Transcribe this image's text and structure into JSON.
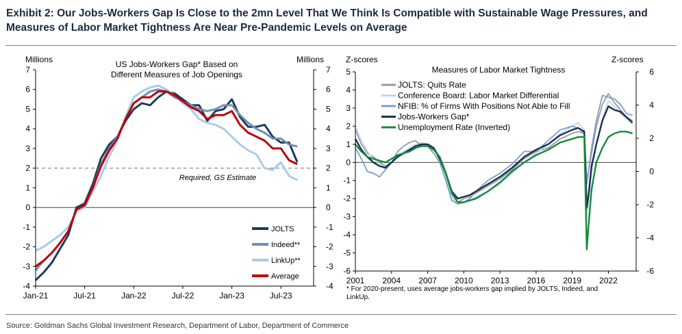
{
  "exhibit_title": "Exhibit 2: Our Jobs-Workers Gap Is Close to the 2mn Level That We Think Is Compatible with Sustainable Wage Pressures, and Measures of Labor Market Tightness Are Near Pre-Pandemic Levels on Average",
  "source": "Source: Goldman Sachs Global Investment Research, Department of Labor, Department of Commerce",
  "chart_data": [
    {
      "type": "line",
      "title": "US Jobs-Workers Gap* Based on Different Measures of Job Openings",
      "y_left_label": "Millions",
      "y_right_label": "Millions",
      "ylim": [
        -4,
        7
      ],
      "yticks": [
        "7",
        "6",
        "5",
        "4",
        "3",
        "2",
        "1",
        "0",
        "-1",
        "-2",
        "-3",
        "-4"
      ],
      "x_ticks": [
        {
          "label": "Jan-21",
          "m": 0
        },
        {
          "label": "Jul-21",
          "m": 6
        },
        {
          "label": "Jan-22",
          "m": 12
        },
        {
          "label": "Jul-22",
          "m": 18
        },
        {
          "label": "Jan-23",
          "m": 24
        },
        {
          "label": "Jul-23",
          "m": 30
        }
      ],
      "xlim_months": [
        0,
        34
      ],
      "reference_line": {
        "y": 2,
        "label": "Required, GS Estimate"
      },
      "series": [
        {
          "name": "JOLTS",
          "color": "#1b3a5c",
          "x": [
            0,
            1,
            2,
            3,
            4,
            5,
            6,
            7,
            8,
            9,
            10,
            11,
            12,
            13,
            14,
            15,
            16,
            17,
            18,
            19,
            20,
            21,
            22,
            23,
            24,
            25,
            26,
            27,
            28,
            29,
            30,
            31,
            32
          ],
          "values": [
            -3.7,
            -3.3,
            -2.8,
            -2.1,
            -1.4,
            0.0,
            0.2,
            1.2,
            2.5,
            3.2,
            3.6,
            4.4,
            5.0,
            5.3,
            5.2,
            5.6,
            5.9,
            5.8,
            5.5,
            5.2,
            5.2,
            4.4,
            4.9,
            5.0,
            5.5,
            4.6,
            4.1,
            4.1,
            4.2,
            3.6,
            3.3,
            3.3,
            2.3
          ]
        },
        {
          "name": "Indeed**",
          "color": "#6f8fb4",
          "x": [
            0,
            1,
            2,
            3,
            4,
            5,
            6,
            7,
            8,
            9,
            10,
            11,
            12,
            13,
            14,
            15,
            16,
            17,
            18,
            19,
            20,
            21,
            22,
            23,
            24,
            25,
            26,
            27,
            28,
            29,
            30,
            31,
            32
          ],
          "values": [
            -3.2,
            -2.7,
            -2.3,
            -1.8,
            -1.2,
            -0.1,
            0.1,
            1.0,
            2.2,
            3.0,
            3.6,
            4.5,
            5.3,
            5.6,
            5.9,
            6.0,
            5.9,
            5.6,
            5.4,
            5.2,
            5.0,
            4.9,
            5.0,
            5.2,
            5.2,
            4.7,
            4.3,
            4.0,
            3.8,
            3.5,
            3.5,
            3.2,
            3.1
          ]
        },
        {
          "name": "LinkUp**",
          "color": "#a9cbe8",
          "x": [
            0,
            1,
            2,
            3,
            4,
            5,
            6,
            7,
            8,
            9,
            10,
            11,
            12,
            13,
            14,
            15,
            16,
            17,
            18,
            19,
            20,
            21,
            22,
            23,
            24,
            25,
            26,
            27,
            28,
            29,
            30,
            31,
            32
          ],
          "values": [
            -2.2,
            -2.0,
            -1.7,
            -1.4,
            -1.0,
            -0.2,
            0.0,
            0.8,
            1.6,
            2.6,
            3.4,
            4.6,
            5.6,
            5.9,
            6.1,
            6.2,
            6.0,
            5.7,
            5.3,
            5.0,
            4.5,
            4.3,
            4.2,
            4.0,
            3.6,
            3.2,
            2.9,
            2.7,
            2.0,
            1.9,
            2.3,
            1.6,
            1.4
          ]
        },
        {
          "name": "Average",
          "color": "#c00000",
          "x": [
            0,
            1,
            2,
            3,
            4,
            5,
            6,
            7,
            8,
            9,
            10,
            11,
            12,
            13,
            14,
            15,
            16,
            17,
            18,
            19,
            20,
            21,
            22,
            23,
            24,
            25,
            26,
            27,
            28,
            29,
            30,
            31,
            32
          ],
          "values": [
            -3.0,
            -2.7,
            -2.3,
            -1.8,
            -1.2,
            -0.1,
            0.1,
            1.0,
            2.1,
            2.9,
            3.5,
            4.5,
            5.3,
            5.6,
            5.6,
            5.9,
            5.9,
            5.7,
            5.4,
            5.1,
            4.9,
            4.5,
            4.7,
            4.7,
            4.9,
            4.2,
            3.8,
            3.6,
            3.4,
            3.0,
            3.0,
            2.4,
            2.2
          ]
        }
      ]
    },
    {
      "type": "line",
      "title": "Measures of Labor Market Tightness",
      "y_left_label": "Z-scores",
      "y_right_label": "Z-scores",
      "ylim_left": [
        -6,
        5
      ],
      "ylim_right": [
        -6,
        6
      ],
      "yticks_left": [
        "5",
        "4",
        "3",
        "2",
        "1",
        "0",
        "-1",
        "-2",
        "-3",
        "-4",
        "-5",
        "-6"
      ],
      "yticks_right": [
        "6",
        "4",
        "2",
        "0",
        "-2",
        "-4",
        "-6"
      ],
      "x_ticks": [
        "2001",
        "2004",
        "2007",
        "2010",
        "2013",
        "2016",
        "2019",
        "2022"
      ],
      "xlim": [
        2001,
        2024.3
      ],
      "footnote": "* For 2020-present, uses average jobs-workers gap implied by JOLTS, Indeed, and LinkUp.",
      "series": [
        {
          "name": "JOLTS: Quits Rate",
          "color": "#9a9a9a",
          "x": [
            2001,
            2001.5,
            2002,
            2002.5,
            2003,
            2003.5,
            2004,
            2004.5,
            2005,
            2005.5,
            2006,
            2006.5,
            2007,
            2007.5,
            2008,
            2008.5,
            2009,
            2009.5,
            2010,
            2010.5,
            2011,
            2012,
            2013,
            2014,
            2015,
            2016,
            2017,
            2018,
            2019,
            2019.5,
            2020,
            2020.2,
            2020.35,
            2020.6,
            2021,
            2021.5,
            2022,
            2022.5,
            2023,
            2023.5,
            2024
          ],
          "values": [
            1.8,
            1.0,
            0.5,
            0.3,
            0.0,
            -0.2,
            0.0,
            0.3,
            0.5,
            0.7,
            0.9,
            1.0,
            1.0,
            0.8,
            0.3,
            -0.5,
            -1.6,
            -2.2,
            -2.0,
            -1.9,
            -1.7,
            -1.3,
            -0.9,
            -0.4,
            0.2,
            0.6,
            0.8,
            1.3,
            1.6,
            1.7,
            1.6,
            -1.0,
            -0.5,
            0.5,
            2.0,
            3.2,
            3.8,
            3.3,
            2.9,
            2.5,
            2.3
          ]
        },
        {
          "name": "Conference Board: Labor Market Differential",
          "color": "#bcd8ee",
          "x": [
            2001,
            2001.5,
            2002,
            2002.5,
            2003,
            2003.5,
            2004,
            2004.5,
            2005,
            2005.5,
            2006,
            2006.5,
            2007,
            2007.5,
            2008,
            2008.5,
            2009,
            2009.5,
            2010,
            2010.5,
            2011,
            2012,
            2013,
            2014,
            2015,
            2016,
            2017,
            2018,
            2019,
            2019.5,
            2020,
            2020.2,
            2020.35,
            2020.6,
            2021,
            2021.5,
            2022,
            2022.5,
            2023,
            2023.5,
            2024
          ],
          "values": [
            2.0,
            1.2,
            0.6,
            0.2,
            -0.1,
            -0.3,
            0.0,
            0.3,
            0.6,
            0.8,
            1.0,
            1.1,
            1.0,
            0.8,
            0.1,
            -0.8,
            -1.9,
            -2.3,
            -2.2,
            -2.1,
            -1.9,
            -1.6,
            -1.2,
            -0.6,
            0.0,
            0.5,
            1.0,
            1.6,
            2.0,
            2.2,
            1.8,
            -3.0,
            -2.2,
            -0.6,
            1.0,
            2.4,
            3.4,
            3.1,
            2.7,
            2.4,
            2.1
          ]
        },
        {
          "name": "NFIB: % of Firms With Positions Not Able to Fill",
          "color": "#7d9cc4",
          "x": [
            2001,
            2001.5,
            2002,
            2002.5,
            2003,
            2003.5,
            2004,
            2004.5,
            2005,
            2005.5,
            2006,
            2006.5,
            2007,
            2007.5,
            2008,
            2008.5,
            2009,
            2009.5,
            2010,
            2010.5,
            2011,
            2012,
            2013,
            2014,
            2015,
            2016,
            2017,
            2018,
            2019,
            2019.5,
            2020,
            2020.2,
            2020.35,
            2020.6,
            2021,
            2021.5,
            2022,
            2022.5,
            2023,
            2023.5,
            2024
          ],
          "values": [
            0.8,
            0.2,
            -0.5,
            -0.6,
            -0.8,
            -0.4,
            0.0,
            0.6,
            0.9,
            1.1,
            1.2,
            0.9,
            0.9,
            0.5,
            0.0,
            -1.0,
            -2.1,
            -2.3,
            -2.2,
            -2.0,
            -1.6,
            -1.0,
            -0.6,
            -0.1,
            0.6,
            0.6,
            1.2,
            1.8,
            2.0,
            1.9,
            1.6,
            -1.2,
            -0.5,
            0.8,
            2.3,
            3.7,
            3.6,
            3.5,
            3.2,
            2.7,
            2.6
          ]
        },
        {
          "name": "Jobs-Workers Gap*",
          "color": "#1b2e4e",
          "x": [
            2001,
            2001.5,
            2002,
            2002.5,
            2003,
            2003.5,
            2004,
            2004.5,
            2005,
            2005.5,
            2006,
            2006.5,
            2007,
            2007.5,
            2008,
            2008.5,
            2009,
            2009.5,
            2010,
            2010.5,
            2011,
            2012,
            2013,
            2014,
            2015,
            2016,
            2017,
            2018,
            2019,
            2019.5,
            2020,
            2020.2,
            2020.35,
            2020.6,
            2021,
            2021.5,
            2022,
            2022.5,
            2023,
            2023.5,
            2024
          ],
          "values": [
            1.3,
            0.7,
            0.3,
            0.0,
            -0.2,
            -0.3,
            0.0,
            0.3,
            0.5,
            0.7,
            0.9,
            1.0,
            1.0,
            0.8,
            0.2,
            -0.6,
            -1.6,
            -2.0,
            -1.9,
            -1.8,
            -1.6,
            -1.2,
            -0.8,
            -0.3,
            0.3,
            0.7,
            1.0,
            1.5,
            1.8,
            1.9,
            1.7,
            -2.5,
            -1.8,
            -0.2,
            1.0,
            2.3,
            3.1,
            2.9,
            2.8,
            2.5,
            2.2
          ]
        },
        {
          "name": "Unemployment Rate (Inverted)",
          "color": "#128a3a",
          "x": [
            2001,
            2001.5,
            2002,
            2002.5,
            2003,
            2003.5,
            2004,
            2004.5,
            2005,
            2005.5,
            2006,
            2006.5,
            2007,
            2007.5,
            2008,
            2008.5,
            2009,
            2009.5,
            2010,
            2010.5,
            2011,
            2012,
            2013,
            2014,
            2015,
            2016,
            2017,
            2018,
            2019,
            2019.5,
            2020,
            2020.2,
            2020.35,
            2020.6,
            2021,
            2021.5,
            2022,
            2022.5,
            2023,
            2023.5,
            2024
          ],
          "values": [
            1.0,
            0.6,
            0.3,
            0.2,
            0.1,
            0.0,
            0.2,
            0.4,
            0.5,
            0.6,
            0.8,
            0.9,
            0.9,
            0.7,
            0.3,
            -0.6,
            -1.7,
            -2.2,
            -2.2,
            -2.1,
            -2.0,
            -1.6,
            -1.1,
            -0.5,
            0.0,
            0.4,
            0.7,
            1.1,
            1.3,
            1.4,
            1.4,
            -4.8,
            -3.5,
            -1.5,
            0.0,
            0.8,
            1.4,
            1.6,
            1.7,
            1.7,
            1.6
          ]
        }
      ]
    }
  ]
}
